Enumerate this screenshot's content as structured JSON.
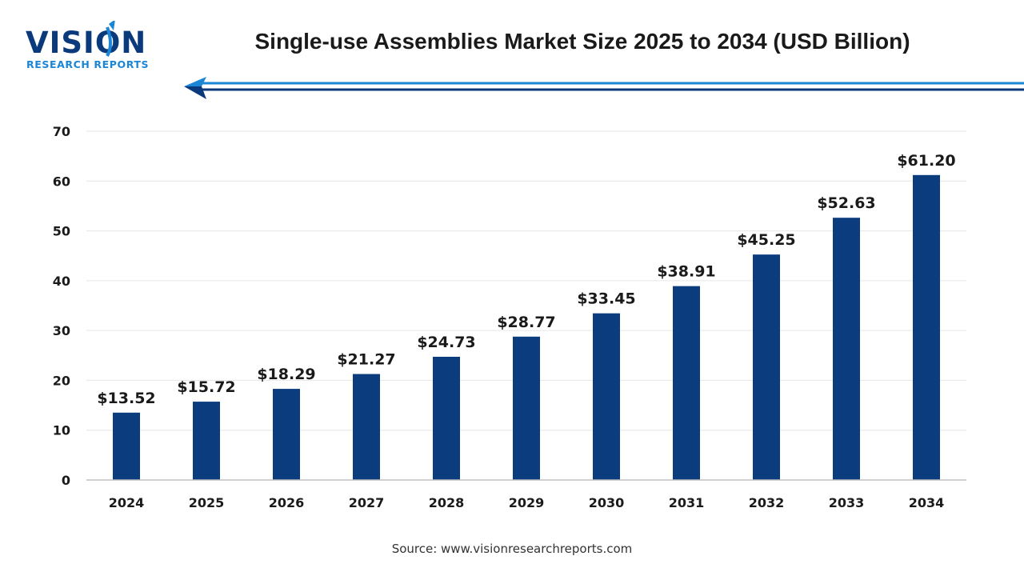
{
  "logo": {
    "word": "VISION",
    "sub": "RESEARCH REPORTS"
  },
  "source": "Source: www.visionresearchreports.com",
  "colors": {
    "bar": "#0b3c7d",
    "accent": "#1b86d6",
    "dark": "#0b3a7c"
  },
  "chart_data": {
    "type": "bar",
    "title": "Single-use Assemblies Market Size 2025 to 2034 (USD Billion)",
    "categories": [
      "2024",
      "2025",
      "2026",
      "2027",
      "2028",
      "2029",
      "2030",
      "2031",
      "2032",
      "2033",
      "2034"
    ],
    "values": [
      13.52,
      15.72,
      18.29,
      21.27,
      24.73,
      28.77,
      33.45,
      38.91,
      45.25,
      52.63,
      61.2
    ],
    "data_labels": [
      "$13.52",
      "$15.72",
      "$18.29",
      "$21.27",
      "$24.73",
      "$28.77",
      "$33.45",
      "$38.91",
      "$45.25",
      "$52.63",
      "$61.20"
    ],
    "yticks": [
      0,
      10,
      20,
      30,
      40,
      50,
      60,
      70
    ],
    "ylim": [
      0,
      70
    ],
    "grid": true,
    "legend": "none"
  }
}
